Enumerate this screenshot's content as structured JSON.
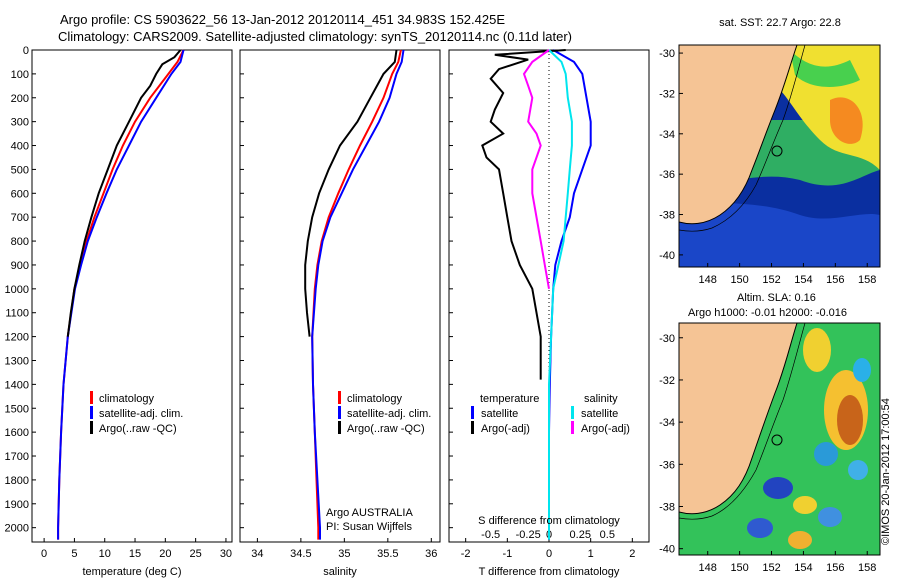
{
  "titles": {
    "line1": "Argo profile: CS 5903622_56 13-Jan-2012 20120114_451 34.983S 152.425E",
    "line2": "Climatology: CARS2009. Satellite-adjusted climatology: synTS_20120114.nc (0.11d later)"
  },
  "stamp": "©IMOS 20-Jan-2012 17:00:54",
  "colors": {
    "climatology": "#ff0000",
    "satellite": "#0000ff",
    "argo": "#000000",
    "satellite_s": "#00e5ee",
    "argo_s": "#ff00ff",
    "land": "#f5c495"
  },
  "chart_data": [
    {
      "type": "line",
      "xlabel": "temperature (deg C)",
      "ylabel": "",
      "xlim": [
        -2,
        31
      ],
      "ylim": [
        2060,
        0
      ],
      "xticks": [
        0,
        5,
        10,
        15,
        20,
        25,
        30
      ],
      "yticks": [
        0,
        100,
        200,
        300,
        400,
        500,
        600,
        700,
        800,
        900,
        1000,
        1100,
        1200,
        1300,
        1400,
        1500,
        1600,
        1700,
        1800,
        1900,
        2000
      ],
      "legend": [
        "climatology",
        "satellite-adj. clim.",
        "Argo(..raw -QC)"
      ],
      "series": [
        {
          "name": "climatology",
          "color": "#ff0000",
          "depth": [
            0,
            50,
            100,
            200,
            300,
            400,
            500,
            600,
            700,
            800,
            900,
            1000,
            1200,
            1400,
            1600,
            1800,
            2000,
            2050
          ],
          "values": [
            23,
            22,
            20.5,
            17.5,
            15,
            13,
            11.3,
            9.8,
            8.3,
            7,
            6,
            5,
            3.9,
            3.2,
            2.8,
            2.5,
            2.3,
            2.3
          ]
        },
        {
          "name": "satellite-adj. clim.",
          "color": "#0000ff",
          "depth": [
            0,
            50,
            100,
            200,
            300,
            400,
            500,
            600,
            700,
            800,
            900,
            1000,
            1200,
            1400,
            1600,
            1800,
            2000,
            2050
          ],
          "values": [
            23,
            22.5,
            21,
            18.5,
            16,
            14,
            12,
            10.3,
            8.7,
            7.2,
            6.1,
            5.1,
            3.9,
            3.2,
            2.8,
            2.5,
            2.3,
            2.3
          ]
        },
        {
          "name": "Argo(..raw -QC)",
          "color": "#000000",
          "depth": [
            0,
            30,
            60,
            100,
            150,
            200,
            300,
            400,
            500,
            600,
            700,
            800,
            900,
            1000,
            1100,
            1200
          ],
          "values": [
            22.5,
            21.5,
            19.5,
            18.5,
            17.5,
            16,
            14,
            12,
            10.5,
            9,
            7.8,
            6.7,
            5.8,
            5,
            4.4,
            3.9
          ]
        }
      ]
    },
    {
      "type": "line",
      "xlabel": "salinity",
      "xlim": [
        33.8,
        36.1
      ],
      "ylim": [
        2060,
        0
      ],
      "xticks": [
        34,
        34.5,
        35,
        35.5,
        36
      ],
      "legend": [
        "climatology",
        "satellite-adj. clim.",
        "Argo(..raw -QC)"
      ],
      "annotation": [
        "Argo AUSTRALIA",
        "PI: Susan Wijffels"
      ],
      "series": [
        {
          "name": "climatology",
          "color": "#ff0000",
          "depth": [
            0,
            50,
            100,
            200,
            300,
            400,
            500,
            600,
            700,
            800,
            900,
            1000,
            1200,
            1400,
            1600,
            1800,
            2000,
            2050
          ],
          "values": [
            35.65,
            35.62,
            35.55,
            35.45,
            35.32,
            35.18,
            35.05,
            34.93,
            34.82,
            34.74,
            34.69,
            34.66,
            34.63,
            34.64,
            34.66,
            34.68,
            34.7,
            34.7
          ]
        },
        {
          "name": "satellite-adj. clim.",
          "color": "#0000ff",
          "depth": [
            0,
            50,
            100,
            200,
            300,
            400,
            500,
            600,
            700,
            800,
            900,
            1000,
            1200,
            1400,
            1600,
            1800,
            2000,
            2050
          ],
          "values": [
            35.68,
            35.66,
            35.6,
            35.52,
            35.4,
            35.25,
            35.1,
            34.97,
            34.84,
            34.75,
            34.7,
            34.67,
            34.63,
            34.64,
            34.66,
            34.69,
            34.72,
            34.72
          ]
        },
        {
          "name": "Argo(..raw -QC)",
          "color": "#000000",
          "depth": [
            0,
            50,
            100,
            200,
            300,
            400,
            500,
            600,
            700,
            800,
            900,
            1000,
            1100,
            1200
          ],
          "values": [
            35.6,
            35.58,
            35.45,
            35.3,
            35.15,
            34.95,
            34.82,
            34.71,
            34.63,
            34.58,
            34.55,
            34.55,
            34.57,
            34.6
          ]
        }
      ]
    },
    {
      "type": "line",
      "xlabel": "T difference from climatology",
      "xlabel2": "S difference from climatology",
      "xlim": [
        -2.4,
        2.4
      ],
      "ylim": [
        2060,
        0
      ],
      "xticks": [
        -2,
        -1,
        0,
        1,
        2
      ],
      "xticks2": [
        "-0.5",
        "-0.25",
        "0",
        "0.25",
        "0.5"
      ],
      "legend_temperature": {
        "header": "temperature",
        "items": [
          "satellite",
          "Argo(-adj)"
        ]
      },
      "legend_salinity": {
        "header": "salinity",
        "items": [
          "satellite",
          "Argo(-adj)"
        ]
      },
      "series": [
        {
          "name": "satellite",
          "color": "#0000ff",
          "depth": [
            0,
            50,
            100,
            200,
            300,
            400,
            500,
            600,
            700,
            800,
            900,
            1000,
            1200,
            1400,
            1600,
            1800,
            2000,
            2050
          ],
          "values": [
            0.1,
            0.6,
            0.8,
            0.9,
            1,
            1,
            0.8,
            0.6,
            0.5,
            0.3,
            0.15,
            0.1,
            0.05,
            0.02,
            0,
            0,
            0,
            0
          ]
        },
        {
          "name": "Argo(-adj)",
          "color": "#000000",
          "depth": [
            0,
            20,
            40,
            80,
            120,
            180,
            250,
            300,
            350,
            400,
            450,
            500,
            600,
            700,
            800,
            900,
            1000,
            1100,
            1200,
            1300,
            1380
          ],
          "values": [
            0.4,
            -1.3,
            -0.5,
            -1.2,
            -1.4,
            -1.1,
            -1.3,
            -1.4,
            -1.1,
            -1.6,
            -1.5,
            -1.2,
            -1.1,
            -1,
            -0.9,
            -0.7,
            -0.4,
            -0.3,
            -0.2,
            -0.2,
            -0.2
          ]
        },
        {
          "name": "satellite",
          "color": "#00e5ee",
          "depth": [
            0,
            50,
            100,
            200,
            300,
            400,
            500,
            600,
            700,
            800,
            1000,
            1200,
            1400,
            1600,
            2050
          ],
          "values": [
            0,
            0.3,
            0.4,
            0.45,
            0.55,
            0.55,
            0.5,
            0.45,
            0.4,
            0.35,
            0.1,
            0.05,
            0,
            0,
            0
          ]
        },
        {
          "name": "Argo(-adj)",
          "color": "#ff00ff",
          "depth": [
            0,
            50,
            100,
            150,
            200,
            300,
            350,
            400,
            500,
            600,
            700,
            800,
            900,
            1000
          ],
          "values": [
            0,
            -0.4,
            -0.6,
            -0.5,
            -0.4,
            -0.5,
            -0.3,
            -0.2,
            -0.4,
            -0.4,
            -0.3,
            -0.2,
            -0.1,
            0
          ]
        }
      ]
    }
  ],
  "maps": [
    {
      "title": "sat. SST: 22.7  Argo: 22.8",
      "title_line2": "",
      "xticks": [
        148,
        150,
        152,
        154,
        156,
        158
      ],
      "yticks": [
        -30,
        -32,
        -34,
        -36,
        -38,
        -40
      ]
    },
    {
      "title": "Altim. SLA: 0.16",
      "title_line2": "Argo h1000: -0.01  h2000: -0.016",
      "xticks": [
        148,
        150,
        152,
        154,
        156,
        158
      ],
      "yticks": [
        -30,
        -32,
        -34,
        -36,
        -38,
        -40
      ]
    }
  ]
}
